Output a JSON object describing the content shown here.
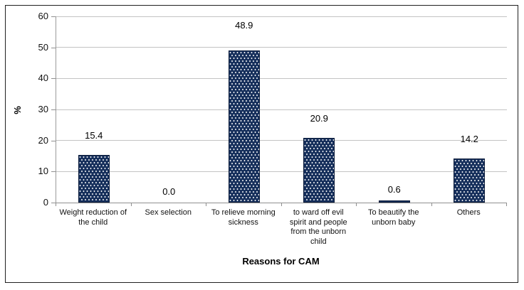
{
  "chart_data": {
    "type": "bar",
    "categories": [
      "Weight reduction of\nthe child",
      "Sex selection",
      "To relieve morning\nsickness",
      "to ward off evil\nspirit and people\nfrom the unborn\nchild",
      "To beautify the\nunborn baby",
      "Others"
    ],
    "values": [
      15.4,
      0.0,
      48.9,
      20.9,
      0.6,
      14.2
    ],
    "value_labels": [
      "15.4",
      "0.0",
      "48.9",
      "20.9",
      "0.6",
      "14.2"
    ],
    "title": "",
    "xlabel": "Reasons for CAM",
    "ylabel": "%",
    "ylim": [
      0,
      60
    ],
    "yticks": [
      0,
      10,
      20,
      30,
      40,
      50,
      60
    ],
    "grid": true,
    "legend": false,
    "bar_fill_color": "#17305C",
    "bar_border_color": "#0B1B3A",
    "bar_pattern": "white-dots",
    "gridline_color": "#C3C3C3",
    "axis_color": "#8F8F8F"
  }
}
